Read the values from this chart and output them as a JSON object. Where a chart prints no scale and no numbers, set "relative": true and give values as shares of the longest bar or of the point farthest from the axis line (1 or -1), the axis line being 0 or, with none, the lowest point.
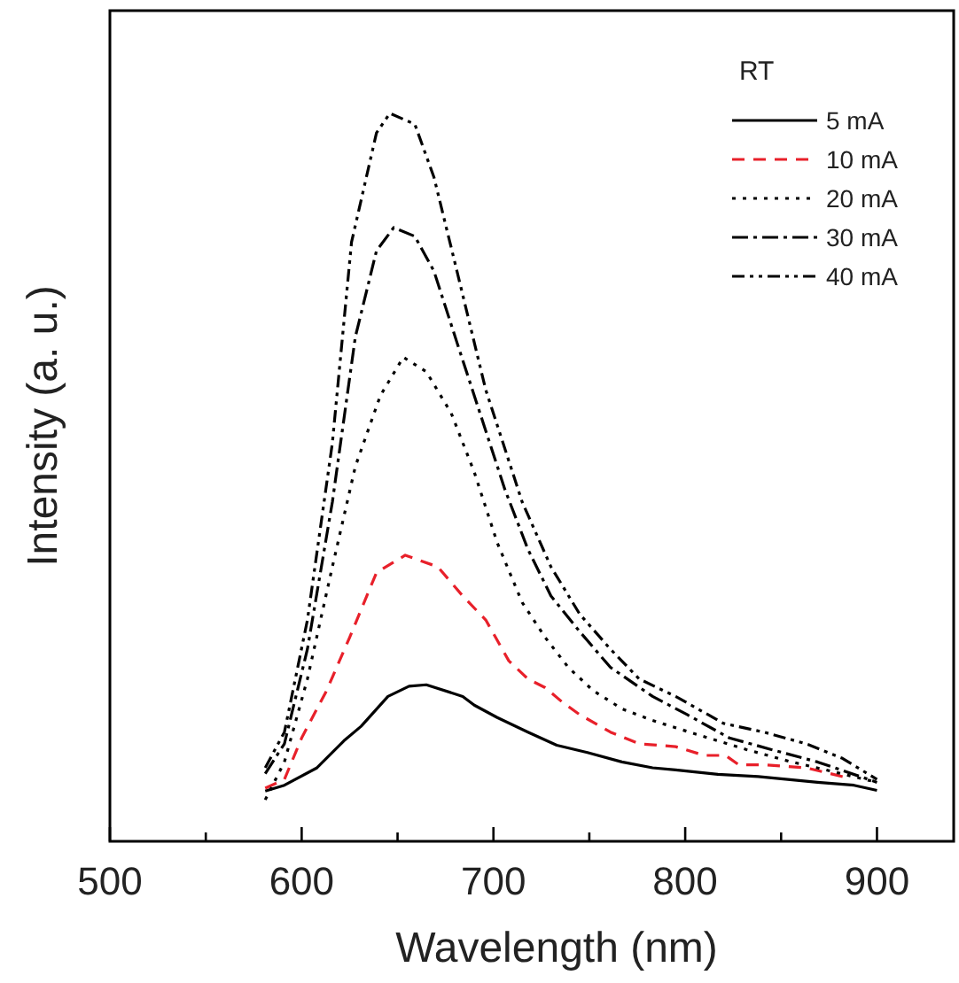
{
  "chart_data": {
    "type": "line",
    "xlabel": "Wavelength (nm)",
    "ylabel": "Intensity (a. u.)",
    "legend_title": "RT",
    "legend": "top right",
    "relative": true,
    "xlim": [
      500,
      940
    ],
    "xticks": [
      500,
      {
        "value": 550,
        "label": null
      },
      600,
      {
        "value": 650,
        "label": null
      },
      700,
      {
        "value": 750,
        "label": null
      },
      800,
      {
        "value": 850,
        "label": null
      },
      900
    ],
    "series": [
      {
        "name": "5 mA",
        "color": "#000000",
        "line_style": "solid",
        "x": [
          581,
          591,
          608,
          622,
          631,
          645,
          656,
          665,
          684,
          690,
          702,
          718,
          733,
          749,
          767,
          783,
          795,
          817,
          838,
          869,
          888,
          900
        ],
        "values": [
          0.069,
          0.077,
          0.101,
          0.138,
          0.158,
          0.199,
          0.213,
          0.215,
          0.199,
          0.187,
          0.17,
          0.15,
          0.132,
          0.122,
          0.109,
          0.101,
          0.098,
          0.092,
          0.089,
          0.081,
          0.077,
          0.07
        ]
      },
      {
        "name": "10 mA",
        "color": "#e8202a",
        "line_style": "dashed",
        "x": [
          581,
          591,
          600,
          613,
          625,
          639,
          654,
          671,
          684,
          696,
          708,
          718,
          727,
          736,
          745,
          761,
          776,
          795,
          810,
          821,
          828,
          841,
          863,
          885
        ],
        "values": [
          0.073,
          0.085,
          0.142,
          0.207,
          0.28,
          0.369,
          0.393,
          0.377,
          0.337,
          0.304,
          0.248,
          0.223,
          0.211,
          0.191,
          0.174,
          0.15,
          0.134,
          0.13,
          0.118,
          0.118,
          0.105,
          0.105,
          0.101,
          0.087
        ]
      },
      {
        "name": "20 mA",
        "color": "#000000",
        "line_style": "dotted",
        "x": [
          581,
          591,
          603,
          616,
          628,
          641,
          653,
          665,
          678,
          690,
          702,
          715,
          727,
          739,
          752,
          767,
          783,
          807,
          832,
          854,
          875,
          900
        ],
        "values": [
          0.057,
          0.109,
          0.223,
          0.377,
          0.515,
          0.612,
          0.665,
          0.645,
          0.588,
          0.507,
          0.41,
          0.328,
          0.28,
          0.239,
          0.207,
          0.182,
          0.166,
          0.146,
          0.126,
          0.11,
          0.097,
          0.081
        ]
      },
      {
        "name": "30 mA",
        "color": "#000000",
        "line_style": "dashdot",
        "x": [
          581,
          591,
          603,
          616,
          628,
          639,
          648,
          659,
          669,
          681,
          693,
          706,
          718,
          730,
          745,
          761,
          783,
          801,
          823,
          845,
          869,
          900
        ],
        "values": [
          0.093,
          0.134,
          0.264,
          0.466,
          0.693,
          0.811,
          0.843,
          0.831,
          0.783,
          0.685,
          0.588,
          0.483,
          0.401,
          0.337,
          0.288,
          0.239,
          0.199,
          0.174,
          0.142,
          0.126,
          0.109,
          0.081
        ]
      },
      {
        "name": "40 mA",
        "color": "#000000",
        "line_style": "dashdotdot",
        "x": [
          581,
          591,
          603,
          616,
          626,
          639,
          646,
          659,
          669,
          681,
          696,
          715,
          730,
          745,
          761,
          776,
          795,
          820,
          841,
          863,
          882,
          900
        ],
        "values": [
          0.101,
          0.15,
          0.304,
          0.547,
          0.823,
          0.973,
          1.0,
          0.985,
          0.912,
          0.783,
          0.62,
          0.466,
          0.377,
          0.312,
          0.264,
          0.223,
          0.199,
          0.162,
          0.15,
          0.134,
          0.114,
          0.085
        ]
      }
    ]
  }
}
